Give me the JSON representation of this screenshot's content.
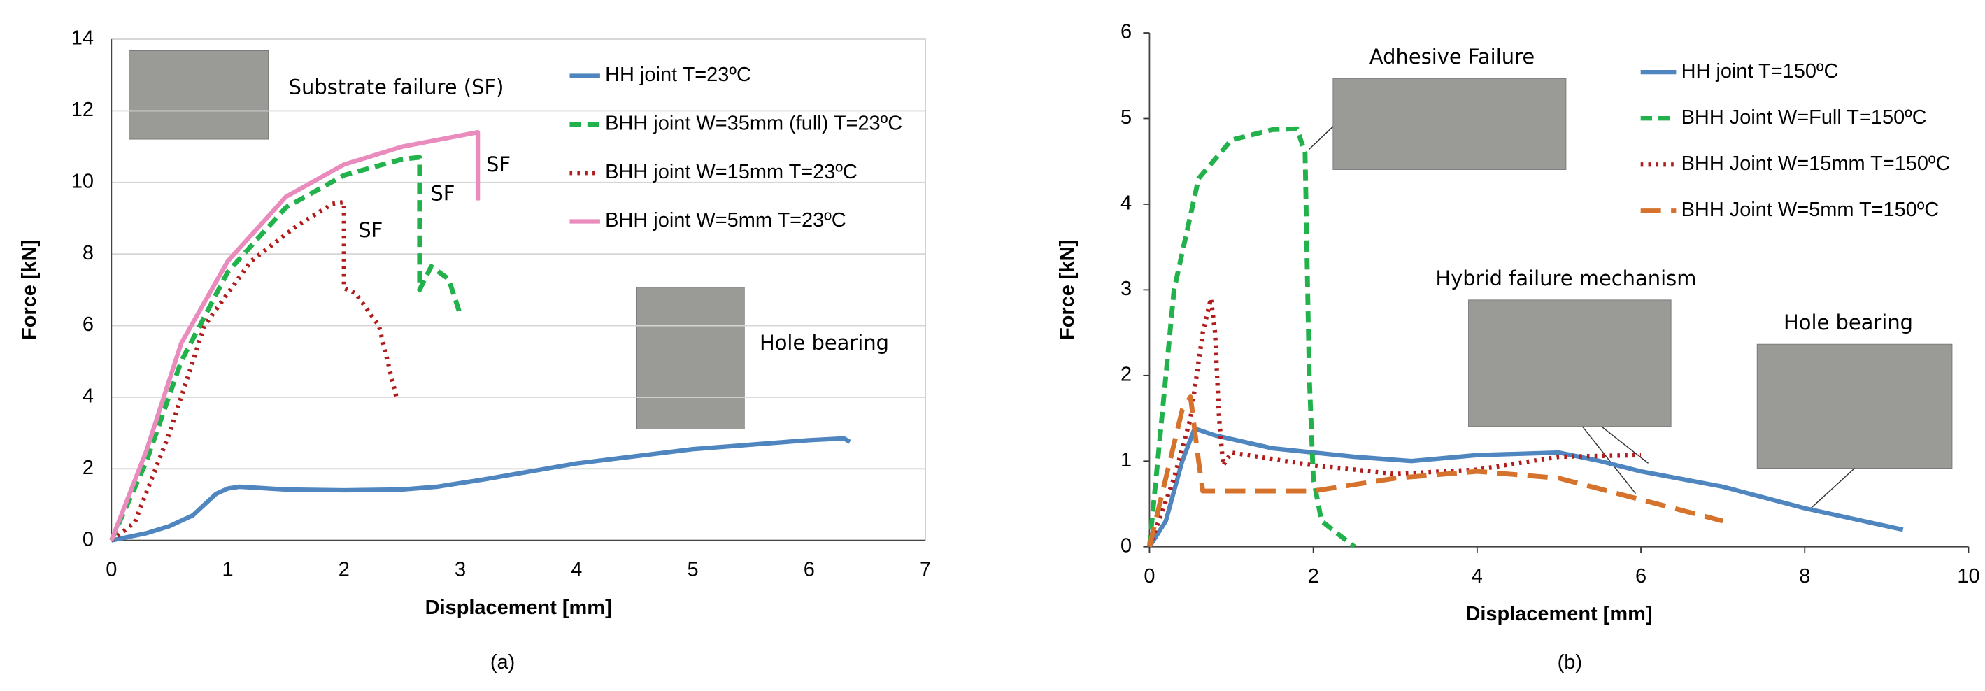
{
  "chart_data": [
    {
      "type": "line",
      "label": "(a)",
      "xlabel": "Displacement [mm]",
      "ylabel": "Force [kN]",
      "xlim": [
        0,
        7
      ],
      "xticks": [
        0,
        1,
        2,
        3,
        4,
        5,
        6,
        7
      ],
      "ylim": [
        0,
        14
      ],
      "yticks": [
        0,
        2,
        4,
        6,
        8,
        10,
        12,
        14
      ],
      "grid": true,
      "annotations": [
        "Substrate failure (SF)",
        "SF",
        "SF",
        "SF",
        "Hole bearing"
      ],
      "series": [
        {
          "name": "HH joint  T=23ºC",
          "color": "#4f86c0",
          "style": "solid",
          "x": [
            0,
            0.3,
            0.5,
            0.7,
            0.9,
            1.0,
            1.1,
            1.5,
            2,
            2.5,
            2.8,
            3.2,
            4,
            5,
            6,
            6.3,
            6.35
          ],
          "values": [
            0,
            0.2,
            0.4,
            0.7,
            1.3,
            1.45,
            1.5,
            1.42,
            1.4,
            1.42,
            1.5,
            1.7,
            2.15,
            2.55,
            2.8,
            2.85,
            2.75
          ]
        },
        {
          "name": "BHH joint W=35mm (full)  T=23ºC",
          "color": "#22b24c",
          "style": "dashed",
          "x": [
            0,
            0.3,
            0.6,
            1,
            1.5,
            2,
            2.5,
            2.65,
            2.65,
            2.75,
            2.9,
            3.0
          ],
          "values": [
            0,
            2.2,
            5,
            7.5,
            9.3,
            10.2,
            10.65,
            10.7,
            7.0,
            7.65,
            7.3,
            6.3
          ]
        },
        {
          "name": "BHH joint W=15mm  T=23ºC",
          "color": "#b01c1c",
          "style": "dotted",
          "x": [
            0,
            0.2,
            0.5,
            0.8,
            1.2,
            1.6,
            1.9,
            2.0,
            2.0,
            2.1,
            2.3,
            2.45
          ],
          "values": [
            0,
            0.5,
            3,
            6,
            7.8,
            8.8,
            9.4,
            9.45,
            7.05,
            6.9,
            6,
            4.0
          ]
        },
        {
          "name": "BHH joint W=5mm  T=23ºC",
          "color": "#e98bbd",
          "style": "solid",
          "x": [
            0,
            0.3,
            0.6,
            1,
            1.5,
            2,
            2.5,
            3.15,
            3.15
          ],
          "values": [
            0,
            2.5,
            5.5,
            7.8,
            9.6,
            10.5,
            11,
            11.4,
            9.5
          ]
        }
      ]
    },
    {
      "type": "line",
      "label": "(b)",
      "xlabel": "Displacement [mm]",
      "ylabel": "Force [kN]",
      "xlim": [
        0,
        10
      ],
      "xticks": [
        0,
        2,
        4,
        6,
        8,
        10
      ],
      "ylim": [
        0,
        6
      ],
      "yticks": [
        0,
        1,
        2,
        3,
        4,
        5,
        6
      ],
      "grid": false,
      "annotations": [
        "Adhesive Failure",
        "Hybrid failure mechanism",
        "Hole bearing"
      ],
      "series": [
        {
          "name": "HH joint T=150ºC",
          "color": "#4f86c0",
          "style": "solid",
          "x": [
            0,
            0.2,
            0.4,
            0.55,
            0.8,
            1.5,
            2.5,
            3.2,
            4,
            5,
            5.5,
            6,
            7,
            8,
            9.2
          ],
          "values": [
            0,
            0.3,
            1.0,
            1.38,
            1.3,
            1.15,
            1.05,
            1.0,
            1.07,
            1.1,
            1.0,
            0.88,
            0.7,
            0.45,
            0.2
          ]
        },
        {
          "name": "BHH Joint W=Full T=150ºC",
          "color": "#22b24c",
          "style": "dashed",
          "x": [
            0,
            0.1,
            0.3,
            0.6,
            1.0,
            1.5,
            1.8,
            1.9,
            1.95,
            2.0,
            2.1,
            2.5
          ],
          "values": [
            0,
            1.0,
            3.0,
            4.3,
            4.75,
            4.87,
            4.88,
            4.6,
            2.0,
            0.8,
            0.3,
            0.0
          ]
        },
        {
          "name": "BHH Joint W=15mm T=150ºC",
          "color": "#b01c1c",
          "style": "dotted",
          "x": [
            0,
            0.3,
            0.5,
            0.65,
            0.75,
            0.8,
            0.85,
            0.9,
            1.0,
            2,
            3,
            4,
            5,
            6
          ],
          "values": [
            0,
            0.8,
            1.5,
            2.5,
            2.9,
            2.5,
            1.5,
            0.95,
            1.1,
            0.95,
            0.85,
            0.9,
            1.05,
            1.07
          ]
        },
        {
          "name": "BHH Joint W=5mm T=150ºC",
          "color": "#d5722c",
          "style": "longdash",
          "x": [
            0,
            0.2,
            0.4,
            0.5,
            0.6,
            0.65,
            0.7,
            1,
            2,
            3,
            4,
            5,
            6,
            7
          ],
          "values": [
            0,
            0.8,
            1.6,
            1.75,
            1.0,
            0.65,
            0.65,
            0.65,
            0.65,
            0.8,
            0.88,
            0.8,
            0.55,
            0.3
          ]
        }
      ]
    }
  ]
}
